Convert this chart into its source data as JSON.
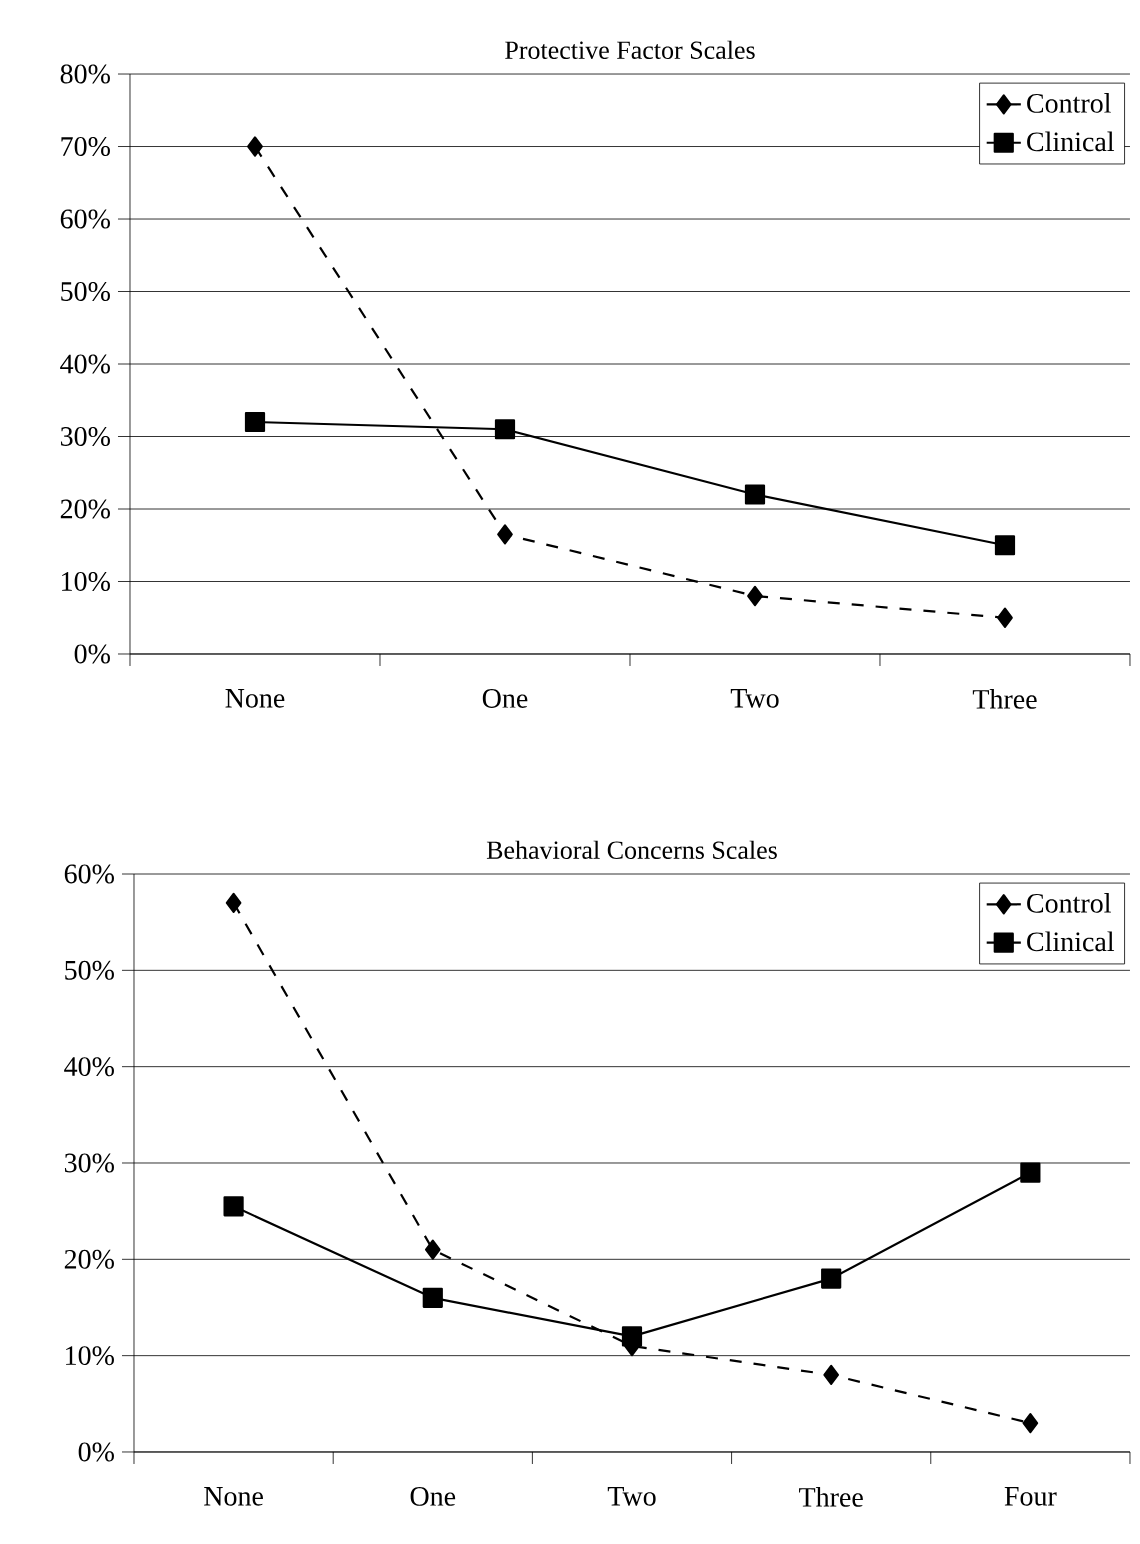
{
  "chart_data": [
    {
      "type": "line",
      "title": "Protective Factor Scales",
      "categories": [
        "None",
        "One",
        "Two",
        "Three"
      ],
      "series": [
        {
          "name": "Control",
          "color": "#000000",
          "marker": "diamond",
          "line_style": "dashed",
          "values": [
            70,
            16.5,
            8,
            5
          ]
        },
        {
          "name": "Clinical",
          "color": "#000000",
          "marker": "square",
          "line_style": "solid",
          "values": [
            32,
            31,
            22,
            15
          ]
        }
      ],
      "ylim": [
        0,
        80
      ],
      "yticks": [
        {
          "value": 0,
          "label": "0%"
        },
        {
          "value": 10,
          "label": "10%"
        },
        {
          "value": 20,
          "label": "20%"
        },
        {
          "value": 30,
          "label": "30%"
        },
        {
          "value": 40,
          "label": "40%"
        },
        {
          "value": 50,
          "label": "50%"
        },
        {
          "value": 60,
          "label": "60%"
        },
        {
          "value": 70,
          "label": "70%"
        },
        {
          "value": 80,
          "label": "80%"
        }
      ],
      "grid": "y",
      "legend": "top right"
    },
    {
      "type": "line",
      "title": "Behavioral Concerns Scales",
      "categories": [
        "None",
        "One",
        "Two",
        "Three",
        "Four"
      ],
      "series": [
        {
          "name": "Control",
          "color": "#000000",
          "marker": "diamond",
          "line_style": "dashed",
          "values": [
            57,
            21,
            11,
            8,
            3
          ]
        },
        {
          "name": "Clinical",
          "color": "#000000",
          "marker": "square",
          "line_style": "solid",
          "values": [
            25.5,
            16,
            12,
            18,
            29
          ]
        }
      ],
      "ylim": [
        0,
        60
      ],
      "yticks": [
        {
          "value": 0,
          "label": "0%"
        },
        {
          "value": 10,
          "label": "10%"
        },
        {
          "value": 20,
          "label": "20%"
        },
        {
          "value": 30,
          "label": "30%"
        },
        {
          "value": 40,
          "label": "40%"
        },
        {
          "value": 50,
          "label": "50%"
        },
        {
          "value": 60,
          "label": "60%"
        }
      ],
      "grid": "y",
      "legend": "top right"
    }
  ]
}
